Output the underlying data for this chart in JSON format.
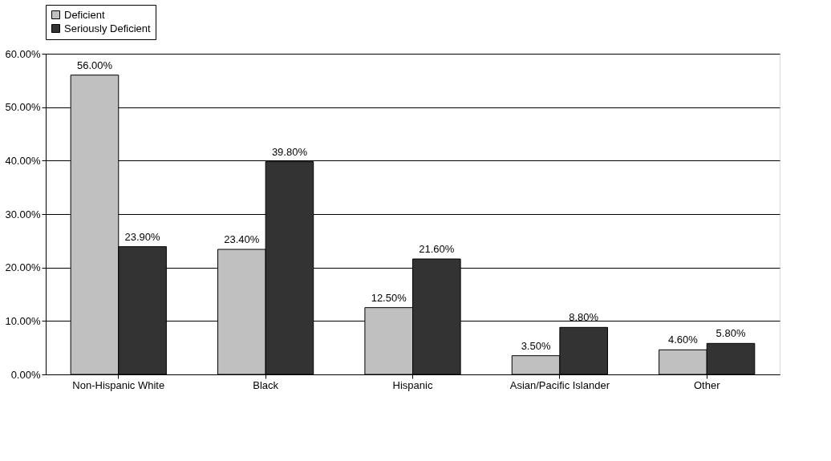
{
  "chart_data": {
    "type": "bar",
    "categories": [
      "Non-Hispanic White",
      "Black",
      "Hispanic",
      "Asian/Pacific Islander",
      "Other"
    ],
    "series": [
      {
        "name": "Deficient",
        "color": "#c0c0c0",
        "values": [
          56.0,
          23.4,
          12.5,
          3.5,
          4.6
        ],
        "value_labels": [
          "56.00%",
          "23.40%",
          "12.50%",
          "3.50%",
          "4.60%"
        ]
      },
      {
        "name": "Seriously Deficient",
        "color": "#333333",
        "values": [
          23.9,
          39.8,
          21.6,
          8.8,
          5.8
        ],
        "value_labels": [
          "23.90%",
          "39.80%",
          "21.60%",
          "8.80%",
          "5.80%"
        ]
      }
    ],
    "ylim": [
      0,
      60
    ],
    "yticks": [
      {
        "value": 0,
        "label": "0.00%"
      },
      {
        "value": 10,
        "label": "10.00%"
      },
      {
        "value": 20,
        "label": "20.00%"
      },
      {
        "value": 30,
        "label": "30.00%"
      },
      {
        "value": 40,
        "label": "40.00%"
      },
      {
        "value": 50,
        "label": "50.00%"
      },
      {
        "value": 60,
        "label": "60.00%"
      }
    ],
    "grid": "y",
    "legend": "top"
  }
}
